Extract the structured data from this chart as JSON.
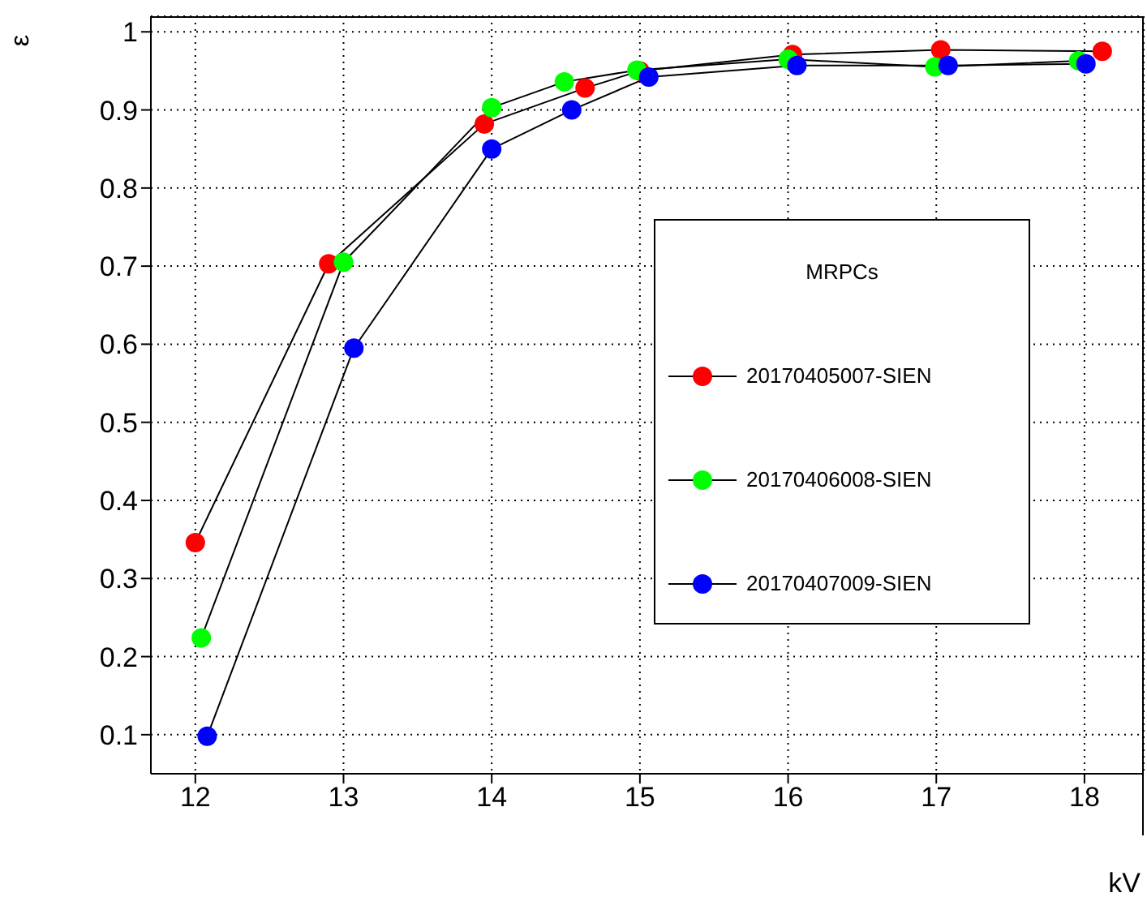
{
  "chart_data": {
    "type": "line",
    "xlabel": "kV",
    "ylabel": "ε",
    "legend_title": "MRPCs",
    "legend": "right",
    "grid": true,
    "marker": "circle",
    "line_style": "solid",
    "xlim": [
      11.7,
      18.4
    ],
    "xticks": [
      12,
      13,
      14,
      15,
      16,
      17,
      18
    ],
    "ylim": [
      0.05,
      1.02
    ],
    "yticks": [
      0.1,
      0.2,
      0.3,
      0.4,
      0.5,
      0.6,
      0.7,
      0.8,
      0.9,
      1
    ],
    "series": [
      {
        "name": "20170405007-SIEN",
        "color": "#ff0000",
        "x": [
          12.0,
          12.9,
          13.95,
          14.63,
          15.0,
          16.03,
          17.03,
          18.12
        ],
        "values": [
          0.346,
          0.703,
          0.882,
          0.928,
          0.95,
          0.971,
          0.977,
          0.975
        ]
      },
      {
        "name": "20170406008-SIEN",
        "color": "#00ff00",
        "x": [
          12.04,
          13.0,
          14.0,
          14.49,
          14.98,
          16.0,
          16.99,
          17.96
        ],
        "values": [
          0.224,
          0.705,
          0.903,
          0.936,
          0.951,
          0.965,
          0.955,
          0.963
        ]
      },
      {
        "name": "20170407009-SIEN",
        "color": "#0000ff",
        "x": [
          12.08,
          13.07,
          14.0,
          14.54,
          15.06,
          16.06,
          17.08,
          18.01
        ],
        "values": [
          0.098,
          0.595,
          0.85,
          0.9,
          0.942,
          0.957,
          0.957,
          0.959
        ]
      }
    ]
  }
}
